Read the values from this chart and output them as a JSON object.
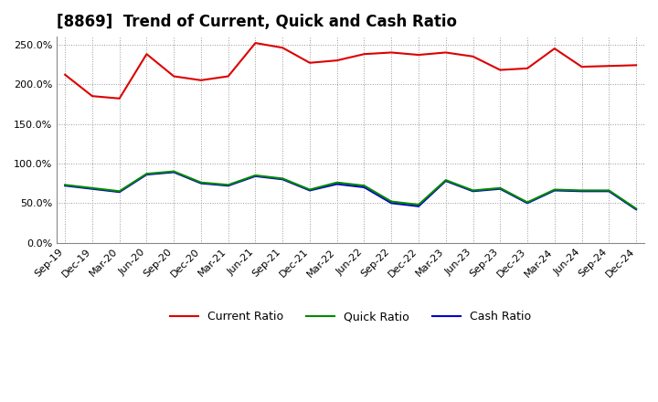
{
  "title": "[8869]  Trend of Current, Quick and Cash Ratio",
  "x_labels": [
    "Sep-19",
    "Dec-19",
    "Mar-20",
    "Jun-20",
    "Sep-20",
    "Dec-20",
    "Mar-21",
    "Jun-21",
    "Sep-21",
    "Dec-21",
    "Mar-22",
    "Jun-22",
    "Sep-22",
    "Dec-22",
    "Mar-23",
    "Jun-23",
    "Sep-23",
    "Dec-23",
    "Mar-24",
    "Jun-24",
    "Sep-24",
    "Dec-24"
  ],
  "current_ratio": [
    2.12,
    1.85,
    1.82,
    2.38,
    2.1,
    2.05,
    2.1,
    2.52,
    2.46,
    2.27,
    2.3,
    2.38,
    2.4,
    2.37,
    2.4,
    2.35,
    2.18,
    2.2,
    2.45,
    2.22,
    2.23,
    2.24
  ],
  "quick_ratio": [
    0.73,
    0.69,
    0.65,
    0.87,
    0.9,
    0.76,
    0.73,
    0.85,
    0.81,
    0.67,
    0.76,
    0.72,
    0.52,
    0.48,
    0.79,
    0.66,
    0.69,
    0.51,
    0.67,
    0.66,
    0.66,
    0.43
  ],
  "cash_ratio": [
    0.72,
    0.68,
    0.64,
    0.86,
    0.89,
    0.75,
    0.72,
    0.84,
    0.8,
    0.66,
    0.74,
    0.7,
    0.5,
    0.46,
    0.78,
    0.65,
    0.68,
    0.5,
    0.66,
    0.65,
    0.65,
    0.42
  ],
  "current_color": "#dd0000",
  "quick_color": "#008800",
  "cash_color": "#0000cc",
  "ylim": [
    0.0,
    2.6
  ],
  "yticks": [
    0.0,
    0.5,
    1.0,
    1.5,
    2.0,
    2.5
  ],
  "background_color": "#ffffff",
  "grid_color": "#999999",
  "title_fontsize": 12
}
